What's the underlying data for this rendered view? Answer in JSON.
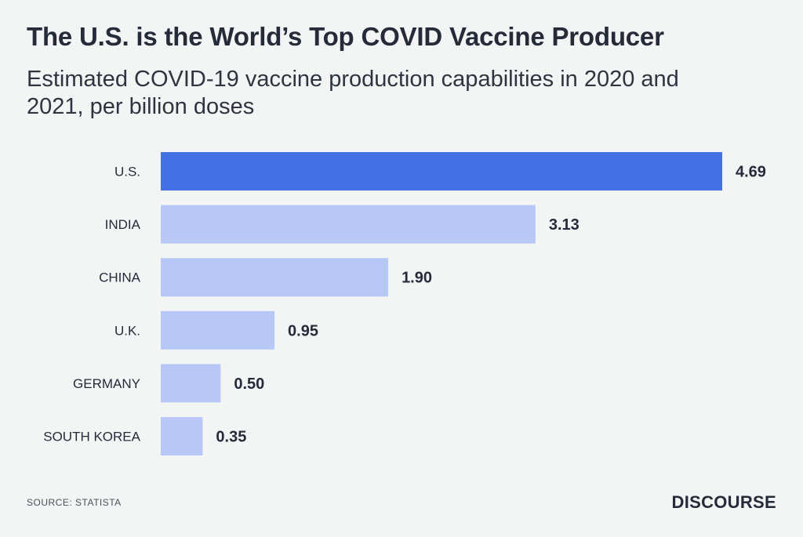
{
  "header": {
    "title": "The U.S. is the World’s Top COVID Vaccine Producer",
    "subtitle": "Estimated COVID-19 vaccine production capabilities in 2020 and 2021, per billion doses"
  },
  "footer": {
    "source": "SOURCE: STATISTA",
    "brand": "DISCOURSE"
  },
  "colors": {
    "highlight": "#4472e4",
    "bar": "#b7c8f6",
    "background": "#f3f4f4",
    "text": "#262b3a"
  },
  "chart_data": {
    "type": "bar",
    "orientation": "horizontal",
    "categories": [
      "U.S.",
      "INDIA",
      "CHINA",
      "U.K.",
      "GERMANY",
      "SOUTH KOREA"
    ],
    "values": [
      4.69,
      3.13,
      1.9,
      0.95,
      0.5,
      0.35
    ],
    "value_labels": [
      "4.69",
      "3.13",
      "1.90",
      "0.95",
      "0.50",
      "0.35"
    ],
    "highlight_index": 0,
    "xlim": [
      0,
      4.69
    ],
    "grid": false,
    "legend": "none",
    "xlabel": "",
    "ylabel": ""
  }
}
